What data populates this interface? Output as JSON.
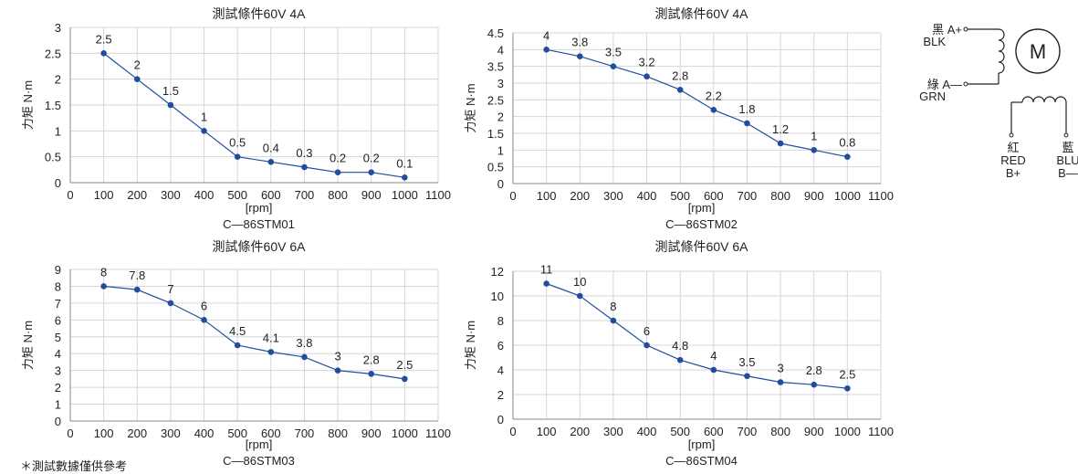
{
  "chart_data": [
    {
      "type": "line",
      "title": "測試條件60V 4A",
      "xlabel": "[rpm]",
      "ylabel": "力矩 N·m",
      "caption": "C—86STM01",
      "xlim": [
        0,
        1100
      ],
      "ylim": [
        0,
        3
      ],
      "xticks": [
        0,
        100,
        200,
        300,
        400,
        500,
        600,
        700,
        800,
        900,
        1000,
        1100
      ],
      "yticks": [
        0,
        0.5,
        1,
        1.5,
        2,
        2.5,
        3
      ],
      "ytick_labels": [
        "0",
        "0.5",
        "1",
        "1.5",
        "2",
        "2.5",
        "3"
      ],
      "x": [
        100,
        200,
        300,
        400,
        500,
        600,
        700,
        800,
        900,
        1000
      ],
      "values": [
        2.5,
        2,
        1.5,
        1,
        0.5,
        0.4,
        0.3,
        0.2,
        0.2,
        0.1
      ],
      "data_labels": [
        "2.5",
        "2",
        "1.5",
        "1",
        "0.5",
        "0.4",
        "0.3",
        "0.2",
        "0.2",
        "0.1"
      ],
      "grid": true,
      "color": "#1f4e9c"
    },
    {
      "type": "line",
      "title": "測試條件60V 4A",
      "xlabel": "[rpm]",
      "ylabel": "力矩 N·m",
      "caption": "C—86STM02",
      "xlim": [
        0,
        1100
      ],
      "ylim": [
        0,
        4.5
      ],
      "xticks": [
        0,
        100,
        200,
        300,
        400,
        500,
        600,
        700,
        800,
        900,
        1000,
        1100
      ],
      "yticks": [
        0,
        0.5,
        1,
        1.5,
        2,
        2.5,
        3,
        3.5,
        4,
        4.5
      ],
      "ytick_labels": [
        "0",
        "0.5",
        "1",
        "1.5",
        "2",
        "2.5",
        "3",
        "3.5",
        "4",
        "4.5"
      ],
      "x": [
        100,
        200,
        300,
        400,
        500,
        600,
        700,
        800,
        900,
        1000
      ],
      "values": [
        4,
        3.8,
        3.5,
        3.2,
        2.8,
        2.2,
        1.8,
        1.2,
        1,
        0.8
      ],
      "data_labels": [
        "4",
        "3.8",
        "3.5",
        "3.2",
        "2.8",
        "2.2",
        "1.8",
        "1.2",
        "1",
        "0.8"
      ],
      "grid": true,
      "color": "#1f4e9c"
    },
    {
      "type": "line",
      "title": "測試條件60V 6A",
      "xlabel": "[rpm]",
      "ylabel": "力矩 N·m",
      "caption": "C—86STM03",
      "xlim": [
        0,
        1100
      ],
      "ylim": [
        0,
        9
      ],
      "xticks": [
        0,
        100,
        200,
        300,
        400,
        500,
        600,
        700,
        800,
        900,
        1000,
        1100
      ],
      "yticks": [
        0,
        1,
        2,
        3,
        4,
        5,
        6,
        7,
        8,
        9
      ],
      "ytick_labels": [
        "0",
        "1",
        "2",
        "3",
        "4",
        "5",
        "6",
        "7",
        "8",
        "9"
      ],
      "x": [
        100,
        200,
        300,
        400,
        500,
        600,
        700,
        800,
        900,
        1000
      ],
      "values": [
        8,
        7.8,
        7,
        6,
        4.5,
        4.1,
        3.8,
        3,
        2.8,
        2.5
      ],
      "data_labels": [
        "8",
        "7.8",
        "7",
        "6",
        "4.5",
        "4.1",
        "3.8",
        "3",
        "2.8",
        "2.5"
      ],
      "grid": true,
      "color": "#1f4e9c"
    },
    {
      "type": "line",
      "title": "測試條件60V 6A",
      "xlabel": "[rpm]",
      "ylabel": "力矩 N·m",
      "caption": "C—86STM04",
      "xlim": [
        0,
        1100
      ],
      "ylim": [
        0,
        12
      ],
      "xticks": [
        0,
        100,
        200,
        300,
        400,
        500,
        600,
        700,
        800,
        900,
        1000,
        1100
      ],
      "yticks": [
        0,
        2,
        4,
        6,
        8,
        10,
        12
      ],
      "ytick_labels": [
        "0",
        "2",
        "4",
        "6",
        "8",
        "10",
        "12"
      ],
      "x": [
        100,
        200,
        300,
        400,
        500,
        600,
        700,
        800,
        900,
        1000
      ],
      "values": [
        11,
        10,
        8,
        6,
        4.8,
        4,
        3.5,
        3,
        2.8,
        2.5
      ],
      "data_labels": [
        "11",
        "10",
        "8",
        "6",
        "4.8",
        "4",
        "3.5",
        "3",
        "2.8",
        "2.5"
      ],
      "grid": true,
      "color": "#1f4e9c"
    }
  ],
  "wiring": {
    "motor_symbol": "M",
    "a_plus": {
      "line1": "黑 A+",
      "line2": "BLK"
    },
    "a_minus": {
      "line1": "綠 A—",
      "line2": "GRN"
    },
    "b_plus": {
      "line1": "紅",
      "line2": "RED",
      "line3": "B+"
    },
    "b_minus": {
      "line1": "藍",
      "line2": "BLU",
      "line3": "B—"
    }
  },
  "footnote": "＊測試數據僅供參考"
}
